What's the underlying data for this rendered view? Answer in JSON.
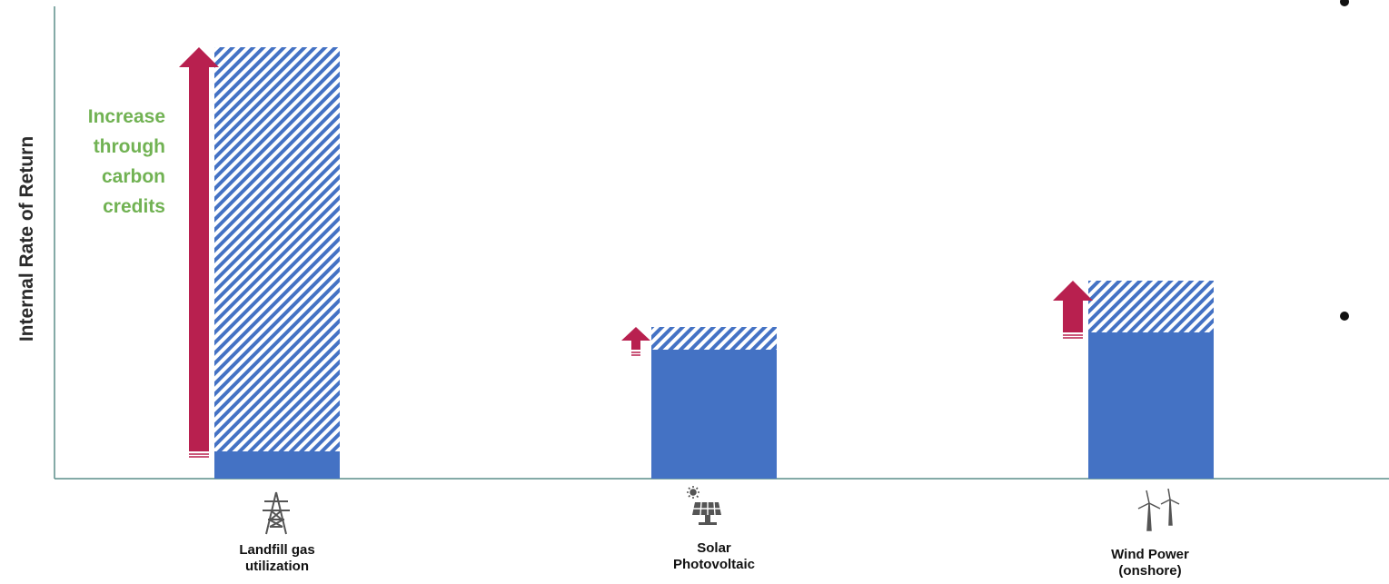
{
  "chart_data": {
    "type": "bar",
    "ylabel": "Internal Rate of Return",
    "annotation": [
      "Increase",
      "through",
      "carbon",
      "credits"
    ],
    "categories": [
      "Landfill gas utilization",
      "Solar Photovoltaic",
      "Wind Power (onshore)"
    ],
    "category_lines": [
      [
        "Landfill gas",
        "utilization"
      ],
      [
        "Solar",
        "Photovoltaic"
      ],
      [
        "Wind Power",
        "(onshore)"
      ]
    ],
    "series": [
      {
        "style": "solid",
        "values": [
          30,
          142,
          161
        ]
      },
      {
        "style": "hatched",
        "values": [
          445,
          25,
          57
        ]
      }
    ],
    "ylim": [
      0,
      520
    ],
    "grid": false,
    "colors": {
      "base": "#4472c4",
      "increase": "#4472c4",
      "arrow": "#b8204f",
      "axis": "#5c8e8a",
      "annotation": "#71b253"
    },
    "icons": [
      "transmission-tower-icon",
      "solar-panel-icon",
      "wind-turbine-icon"
    ]
  }
}
